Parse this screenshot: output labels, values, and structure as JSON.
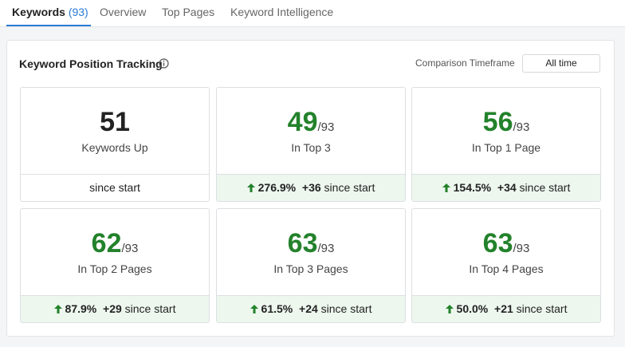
{
  "tabs": [
    {
      "label": "Keywords",
      "count": "(93)"
    },
    {
      "label": "Overview"
    },
    {
      "label": "Top Pages"
    },
    {
      "label": "Keyword Intelligence"
    }
  ],
  "panel": {
    "title": "Keyword Position Tracking",
    "timeframe_label": "Comparison Timeframe",
    "timeframe_value": "All time",
    "cards": [
      {
        "value": 51,
        "label": "Keywords Up",
        "footer": {
          "suffix": "since start"
        }
      },
      {
        "value": 49,
        "total": "/93",
        "label": "In Top 3",
        "footer": {
          "change": "276.9%",
          "delta": "+36",
          "suffix": "since start"
        }
      },
      {
        "value": 56,
        "total": "/93",
        "label": "In Top 1 Page",
        "footer": {
          "change": "154.5%",
          "delta": "+34",
          "suffix": "since start"
        }
      },
      {
        "value": 62,
        "total": "/93",
        "label": "In Top 2 Pages",
        "footer": {
          "change": "87.9%",
          "delta": "+29",
          "suffix": "since start"
        }
      },
      {
        "value": 63,
        "total": "/93",
        "label": "In Top 3 Pages",
        "footer": {
          "change": "61.5%",
          "delta": "+24",
          "suffix": "since start"
        }
      },
      {
        "value": 63,
        "total": "/93",
        "label": "In Top 4 Pages",
        "footer": {
          "change": "50.0%",
          "delta": "+21",
          "suffix": "since start"
        }
      }
    ]
  }
}
